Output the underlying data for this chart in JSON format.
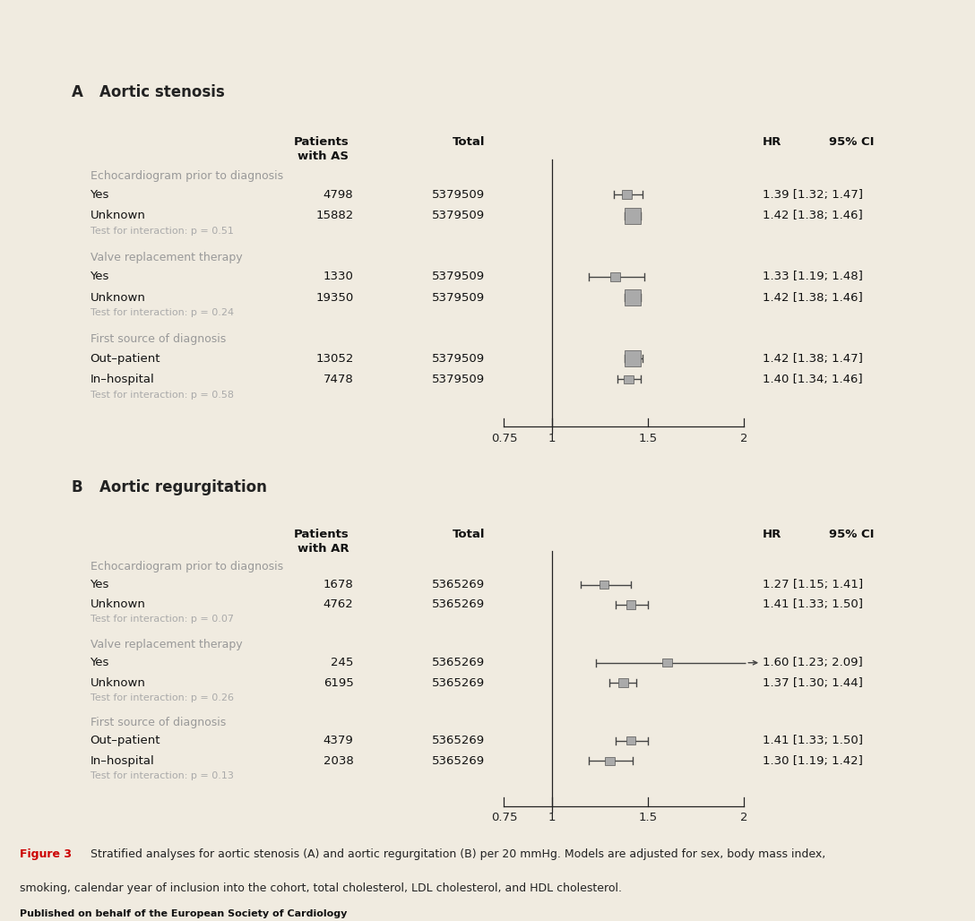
{
  "bg_color": "#f0ebe0",
  "panel_bg": "#ffffff",
  "panel_A": {
    "title_letter": "A",
    "title_text": "Aortic stenosis",
    "col_header_patients": "Patients\nwith AS",
    "col_header_total": "Total",
    "col_header_hr": "HR",
    "col_header_ci": "95% CI",
    "groups": [
      {
        "label": "Echocardiogram prior to diagnosis",
        "rows": [
          {
            "name": "Yes",
            "n": "4798",
            "total": "5379509",
            "hr": 1.39,
            "lo": 1.32,
            "hi": 1.47,
            "hr_text": "1.39 [1.32; 1.47]",
            "box_size": "small"
          },
          {
            "name": "Unknown",
            "n": "15882",
            "total": "5379509",
            "hr": 1.42,
            "lo": 1.38,
            "hi": 1.46,
            "hr_text": "1.42 [1.38; 1.46]",
            "box_size": "large"
          }
        ],
        "interaction": "Test for interaction: p = 0.51"
      },
      {
        "label": "Valve replacement therapy",
        "rows": [
          {
            "name": "Yes",
            "n": "1330",
            "total": "5379509",
            "hr": 1.33,
            "lo": 1.19,
            "hi": 1.48,
            "hr_text": "1.33 [1.19; 1.48]",
            "box_size": "small"
          },
          {
            "name": "Unknown",
            "n": "19350",
            "total": "5379509",
            "hr": 1.42,
            "lo": 1.38,
            "hi": 1.46,
            "hr_text": "1.42 [1.38; 1.46]",
            "box_size": "large"
          }
        ],
        "interaction": "Test for interaction: p = 0.24"
      },
      {
        "label": "First source of diagnosis",
        "rows": [
          {
            "name": "Out–patient",
            "n": "13052",
            "total": "5379509",
            "hr": 1.42,
            "lo": 1.38,
            "hi": 1.47,
            "hr_text": "1.42 [1.38; 1.47]",
            "box_size": "large"
          },
          {
            "name": "In–hospital",
            "n": "7478",
            "total": "5379509",
            "hr": 1.4,
            "lo": 1.34,
            "hi": 1.46,
            "hr_text": "1.40 [1.34; 1.46]",
            "box_size": "small"
          }
        ],
        "interaction": "Test for interaction: p = 0.58"
      }
    ],
    "xmin": 0.75,
    "xmax": 2.0,
    "xticks": [
      0.75,
      1.0,
      1.5,
      2.0
    ],
    "xticklabels": [
      "0.75",
      "1",
      "1.5",
      "2"
    ]
  },
  "panel_B": {
    "title_letter": "B",
    "title_text": "Aortic regurgitation",
    "col_header_patients": "Patients\nwith AR",
    "col_header_total": "Total",
    "col_header_hr": "HR",
    "col_header_ci": "95% CI",
    "groups": [
      {
        "label": "Echocardiogram prior to diagnosis",
        "rows": [
          {
            "name": "Yes",
            "n": "1678",
            "total": "5365269",
            "hr": 1.27,
            "lo": 1.15,
            "hi": 1.41,
            "hr_text": "1.27 [1.15; 1.41]",
            "box_size": "small"
          },
          {
            "name": "Unknown",
            "n": "4762",
            "total": "5365269",
            "hr": 1.41,
            "lo": 1.33,
            "hi": 1.5,
            "hr_text": "1.41 [1.33; 1.50]",
            "box_size": "small"
          }
        ],
        "interaction": "Test for interaction: p = 0.07"
      },
      {
        "label": "Valve replacement therapy",
        "rows": [
          {
            "name": "Yes",
            "n": "245",
            "total": "5365269",
            "hr": 1.6,
            "lo": 1.23,
            "hi": 2.09,
            "hr_text": "1.60 [1.23; 2.09]",
            "box_size": "small",
            "arrow": true
          },
          {
            "name": "Unknown",
            "n": "6195",
            "total": "5365269",
            "hr": 1.37,
            "lo": 1.3,
            "hi": 1.44,
            "hr_text": "1.37 [1.30; 1.44]",
            "box_size": "small"
          }
        ],
        "interaction": "Test for interaction: p = 0.26"
      },
      {
        "label": "First source of diagnosis",
        "rows": [
          {
            "name": "Out–patient",
            "n": "4379",
            "total": "5365269",
            "hr": 1.41,
            "lo": 1.33,
            "hi": 1.5,
            "hr_text": "1.41 [1.33; 1.50]",
            "box_size": "small"
          },
          {
            "name": "In–hospital",
            "n": "2038",
            "total": "5365269",
            "hr": 1.3,
            "lo": 1.19,
            "hi": 1.42,
            "hr_text": "1.30 [1.19; 1.42]",
            "box_size": "small"
          }
        ],
        "interaction": "Test for interaction: p = 0.13"
      }
    ],
    "xmin": 0.75,
    "xmax": 2.0,
    "xticks": [
      0.75,
      1.0,
      1.5,
      2.0
    ],
    "xticklabels": [
      "0.75",
      "1",
      "1.5",
      "2"
    ]
  },
  "caption_bold": "Figure 3",
  "caption_rest_line1": " Stratified analyses for aortic stenosis (A) and aortic regurgitation (B) per 20 mmHg. Models are adjusted for sex, body mass index,",
  "caption_line2": "smoking, calendar year of inclusion into the cohort, total cholesterol, LDL cholesterol, and HDL cholesterol.",
  "footer": "Published on behalf of the European Society of Cardiology"
}
